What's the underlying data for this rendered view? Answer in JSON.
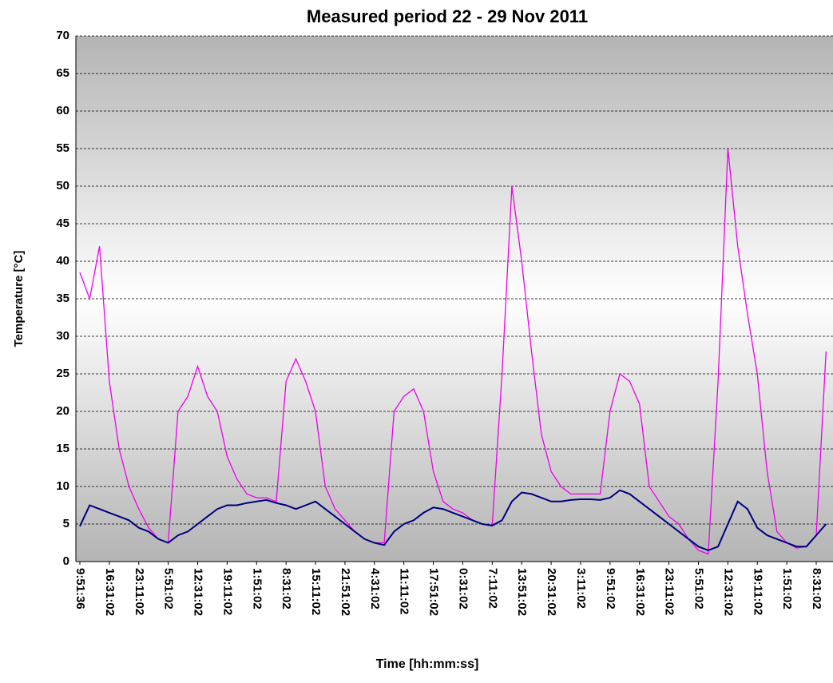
{
  "chart_data": {
    "type": "line",
    "title": "Measured period 22 - 29 Nov 2011",
    "x_label": "Time [hh:mm:ss]",
    "y_label": "Temperature [°C]",
    "categories": [
      "9:51:36",
      null,
      null,
      "16:31:02",
      null,
      null,
      "23:11:02",
      null,
      null,
      "5:51:02",
      null,
      null,
      "12:31:02",
      null,
      null,
      "19:11:02",
      null,
      null,
      "1:51:02",
      null,
      null,
      "8:31:02",
      null,
      null,
      "15:11:02",
      null,
      null,
      "21:51:02",
      null,
      null,
      "4:31:02",
      null,
      null,
      "11:11:02",
      null,
      null,
      "17:51:02",
      null,
      null,
      "0:31:02",
      null,
      null,
      "7:11:02",
      null,
      null,
      "13:51:02",
      null,
      null,
      "20:31:02",
      null,
      null,
      "3:11:02",
      null,
      null,
      "9:51:02",
      null,
      null,
      "16:31:02",
      null,
      null,
      "23:11:02",
      null,
      null,
      "5:51:02",
      null,
      null,
      "12:31:02",
      null,
      null,
      "19:11:02",
      null,
      null,
      "1:51:02",
      null,
      null,
      "8:31:02",
      null
    ],
    "series": [
      {
        "color": "#ee00ee",
        "values": [
          38.5,
          35,
          42,
          24,
          15,
          10,
          7,
          4.5,
          3,
          2.5,
          20,
          22,
          26,
          22,
          20,
          14,
          11,
          9,
          8.5,
          8.5,
          8,
          24,
          27,
          24,
          20,
          10,
          7,
          5.5,
          4,
          3,
          2.5,
          2.5,
          20,
          22,
          23,
          20,
          12,
          8,
          7,
          6.5,
          5.5,
          5,
          4.8,
          25,
          50,
          40,
          28,
          17,
          12,
          10,
          9,
          9,
          9,
          9,
          20,
          25,
          24,
          21,
          10,
          8,
          6,
          5,
          3,
          1.5,
          1,
          24,
          55,
          42,
          33,
          25,
          12,
          4,
          2.5,
          1.8,
          2,
          3.5,
          28
        ]
      },
      {
        "color": "#000080",
        "values": [
          4.7,
          7.5,
          7,
          6.5,
          6,
          5.5,
          4.5,
          4,
          3,
          2.5,
          3.5,
          4,
          5,
          6,
          7,
          7.5,
          7.5,
          7.8,
          8,
          8.2,
          7.8,
          7.5,
          7,
          7.5,
          8,
          7,
          6,
          5,
          4,
          3,
          2.5,
          2.2,
          4,
          5,
          5.5,
          6.5,
          7.2,
          7,
          6.5,
          6,
          5.5,
          5,
          4.8,
          5.5,
          8,
          9.2,
          9,
          8.5,
          8,
          8,
          8.2,
          8.3,
          8.3,
          8.2,
          8.5,
          9.5,
          9,
          8,
          7,
          6,
          5,
          4,
          3,
          2,
          1.5,
          2,
          5,
          8,
          7,
          4.5,
          3.5,
          3,
          2.5,
          2,
          2,
          3.5,
          5
        ]
      }
    ],
    "ylim": [
      0,
      70
    ],
    "yticks": [
      0,
      5,
      10,
      15,
      20,
      25,
      30,
      35,
      40,
      45,
      50,
      55,
      60,
      65,
      70
    ],
    "grid": true
  }
}
